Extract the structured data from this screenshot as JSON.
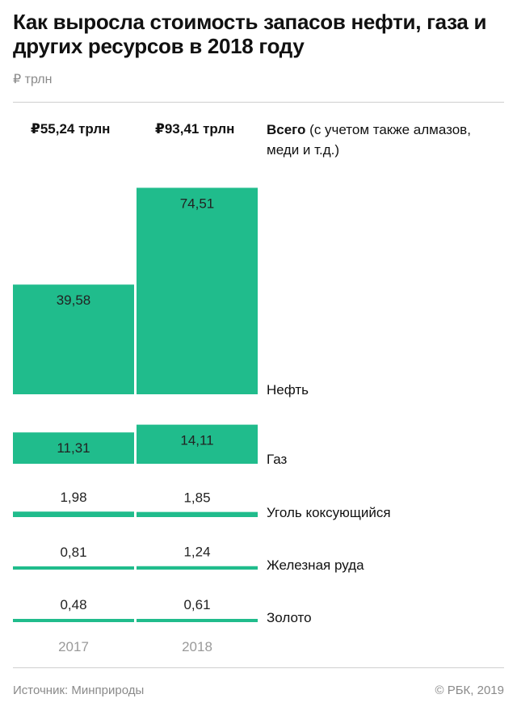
{
  "title": "Как выросла стоимость запасов нефти, газа и других ресурсов в 2018 году",
  "unit": "₽ трлн",
  "totals": {
    "y2017": "₽55,24 трлн",
    "y2018": "₽93,41 трлн"
  },
  "total_label": {
    "bold": "Всего",
    "rest": " (с учетом также алмазов, меди и т.д.)"
  },
  "footer": {
    "source": "Источник: Минприроды",
    "credit": "© РБК, 2019"
  },
  "colors": {
    "bar": "#20bc8c",
    "text": "#111111",
    "muted": "#8a8a8a"
  },
  "chart_data": {
    "type": "bar",
    "layout": "stacked-panels",
    "categories": [
      "2017",
      "2018"
    ],
    "rows": [
      {
        "name": "Нефть",
        "values": [
          39.58,
          74.51
        ],
        "labels": [
          "39,58",
          "74,51"
        ]
      },
      {
        "name": "Газ",
        "values": [
          11.31,
          14.11
        ],
        "labels": [
          "11,31",
          "14,11"
        ]
      },
      {
        "name": "Уголь коксующийся",
        "values": [
          1.98,
          1.85
        ],
        "labels": [
          "1,98",
          "1,85"
        ]
      },
      {
        "name": "Железная руда",
        "values": [
          0.81,
          1.24
        ],
        "labels": [
          "0,81",
          "1,24"
        ]
      },
      {
        "name": "Золото",
        "values": [
          0.48,
          0.61
        ],
        "labels": [
          "0,48",
          "0,61"
        ]
      }
    ]
  }
}
